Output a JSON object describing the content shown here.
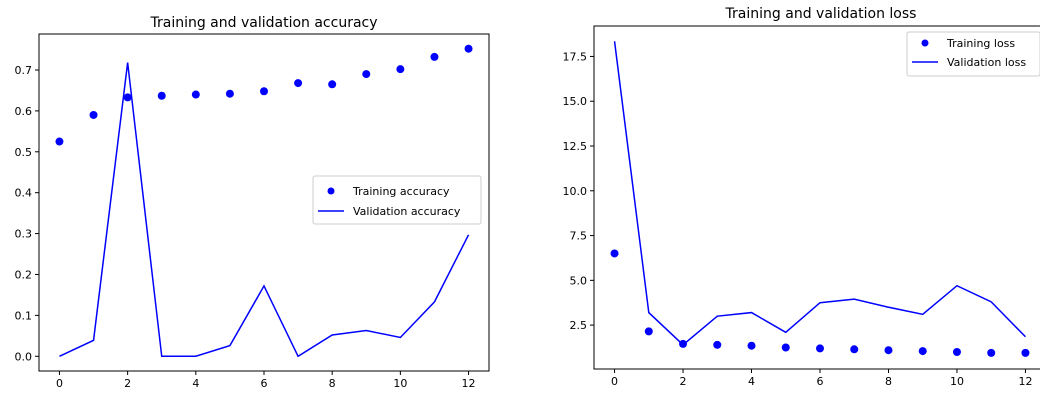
{
  "chart_data": [
    {
      "type": "line",
      "title": "Training and validation accuracy",
      "xlabel": "",
      "ylabel": "",
      "x": [
        0,
        1,
        2,
        3,
        4,
        5,
        6,
        7,
        8,
        9,
        10,
        11,
        12
      ],
      "xlim": [
        -0.6,
        12.6
      ],
      "ylim": [
        -0.036,
        0.788
      ],
      "xticks": [
        0,
        2,
        4,
        6,
        8,
        10,
        12
      ],
      "yticks": [
        0.0,
        0.1,
        0.2,
        0.3,
        0.4,
        0.5,
        0.6,
        0.7
      ],
      "ytick_format": 1,
      "grid": false,
      "legend_position": "center-right",
      "series": [
        {
          "name": "Training accuracy",
          "style": "points",
          "color": "#0000ff",
          "values": [
            0.525,
            0.59,
            0.633,
            0.637,
            0.64,
            0.642,
            0.648,
            0.668,
            0.665,
            0.69,
            0.702,
            0.732,
            0.752
          ]
        },
        {
          "name": "Validation accuracy",
          "style": "line",
          "color": "#0000ff",
          "values": [
            0.0,
            0.039,
            0.718,
            0.0,
            0.0,
            0.026,
            0.172,
            0.0,
            0.052,
            0.063,
            0.046,
            0.133,
            0.297
          ]
        }
      ]
    },
    {
      "type": "line",
      "title": "Training and validation loss",
      "xlabel": "",
      "ylabel": "",
      "x": [
        0,
        1,
        2,
        3,
        4,
        5,
        6,
        7,
        8,
        9,
        10,
        11,
        12
      ],
      "xlim": [
        -0.6,
        12.6
      ],
      "ylim": [
        0.05,
        19.2
      ],
      "xticks": [
        0,
        2,
        4,
        6,
        8,
        10,
        12
      ],
      "yticks": [
        2.5,
        5.0,
        7.5,
        10.0,
        12.5,
        15.0,
        17.5
      ],
      "ytick_format": 1,
      "grid": false,
      "legend_position": "top-right",
      "series": [
        {
          "name": "Training loss",
          "style": "points",
          "color": "#0000ff",
          "values": [
            6.5,
            2.15,
            1.45,
            1.4,
            1.35,
            1.25,
            1.2,
            1.15,
            1.1,
            1.05,
            1.0,
            0.95,
            0.95
          ]
        },
        {
          "name": "Validation loss",
          "style": "line",
          "color": "#0000ff",
          "values": [
            18.35,
            3.2,
            1.4,
            3.0,
            3.2,
            2.1,
            3.75,
            3.95,
            3.5,
            3.1,
            4.7,
            3.8,
            1.85
          ]
        }
      ]
    }
  ]
}
